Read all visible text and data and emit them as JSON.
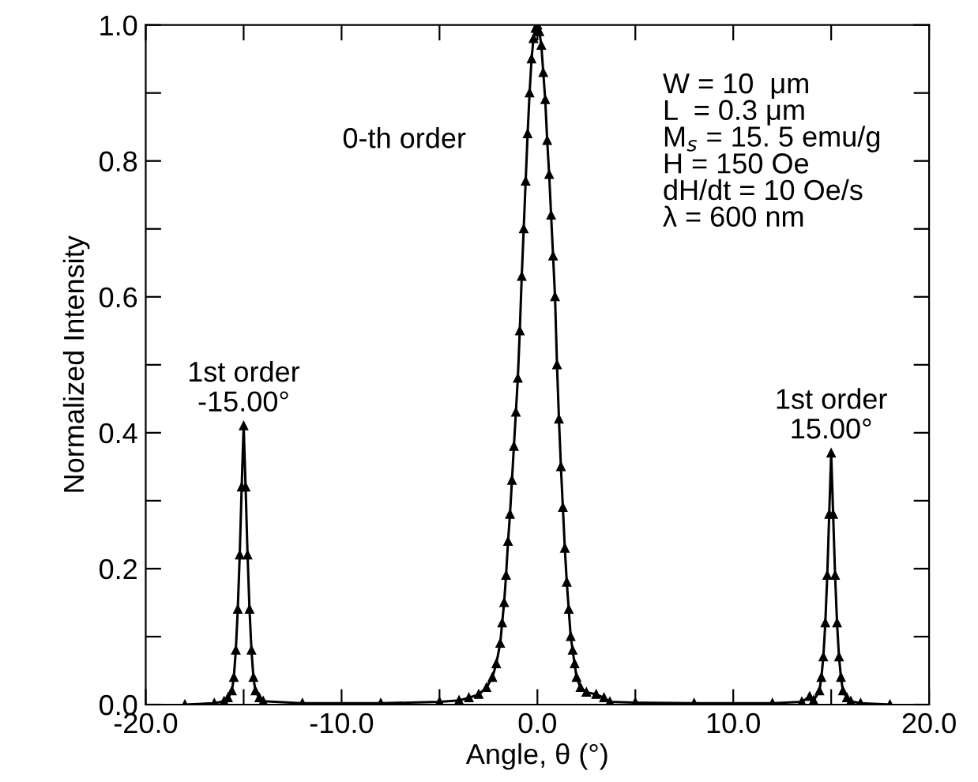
{
  "chart_data": {
    "type": "line",
    "xlabel": "Angle, θ (°)",
    "ylabel": "Normalized Intensity",
    "xlim": [
      -20,
      20
    ],
    "ylim": [
      0,
      1.0
    ],
    "xticks": [
      {
        "value": -20,
        "label": "-20.0"
      },
      {
        "value": -15,
        "label": null
      },
      {
        "value": -10,
        "label": "-10.0"
      },
      {
        "value": -5,
        "label": null
      },
      {
        "value": 0,
        "label": "0.0"
      },
      {
        "value": 5,
        "label": null
      },
      {
        "value": 10,
        "label": "10.0"
      },
      {
        "value": 15,
        "label": null
      },
      {
        "value": 20,
        "label": "20.0"
      }
    ],
    "yticks": [
      {
        "value": 0,
        "label": "0.0"
      },
      {
        "value": 0.1,
        "label": null
      },
      {
        "value": 0.2,
        "label": "0.2"
      },
      {
        "value": 0.3,
        "label": null
      },
      {
        "value": 0.4,
        "label": "0.4"
      },
      {
        "value": 0.5,
        "label": null
      },
      {
        "value": 0.6,
        "label": "0.6"
      },
      {
        "value": 0.7,
        "label": null
      },
      {
        "value": 0.8,
        "label": "0.8"
      },
      {
        "value": 0.9,
        "label": null
      },
      {
        "value": 1.0,
        "label": "1.0"
      }
    ],
    "marker": "triangle",
    "line_style": "solid",
    "grid": false,
    "legend": false,
    "series": [
      {
        "color": "#000000",
        "x": [
          -18,
          -16.5,
          -16,
          -15.8,
          -15.6,
          -15.5,
          -15.4,
          -15.3,
          -15.2,
          -15.1,
          -15.0,
          -14.9,
          -14.8,
          -14.7,
          -14.6,
          -14.5,
          -14.4,
          -14.2,
          -14,
          -12,
          -8,
          -5,
          -4,
          -3.5,
          -3,
          -2.6,
          -2.3,
          -2.1,
          -1.9,
          -1.8,
          -1.7,
          -1.6,
          -1.5,
          -1.4,
          -1.3,
          -1.2,
          -1.1,
          -1.0,
          -0.9,
          -0.8,
          -0.7,
          -0.6,
          -0.5,
          -0.4,
          -0.3,
          -0.2,
          -0.1,
          0,
          0.1,
          0.2,
          0.3,
          0.4,
          0.5,
          0.6,
          0.7,
          0.8,
          0.9,
          1.0,
          1.1,
          1.2,
          1.3,
          1.4,
          1.5,
          1.6,
          1.7,
          1.8,
          1.9,
          2.0,
          2.2,
          2.5,
          3.0,
          3.4,
          3.7,
          5,
          8,
          12,
          13.5,
          13.9,
          14.1,
          14.4,
          14.5,
          14.6,
          14.7,
          14.8,
          14.9,
          15.0,
          15.1,
          15.2,
          15.3,
          15.4,
          15.5,
          15.6,
          15.8,
          16,
          16.5,
          18
        ],
        "values": [
          0.0,
          0.002,
          0.005,
          0.01,
          0.02,
          0.04,
          0.08,
          0.14,
          0.22,
          0.32,
          0.41,
          0.32,
          0.22,
          0.14,
          0.08,
          0.04,
          0.02,
          0.01,
          0.005,
          0.002,
          0.002,
          0.004,
          0.006,
          0.01,
          0.015,
          0.025,
          0.04,
          0.06,
          0.09,
          0.12,
          0.15,
          0.19,
          0.24,
          0.28,
          0.33,
          0.38,
          0.43,
          0.48,
          0.55,
          0.63,
          0.7,
          0.77,
          0.84,
          0.9,
          0.95,
          0.98,
          0.995,
          1.0,
          0.99,
          0.97,
          0.93,
          0.89,
          0.83,
          0.78,
          0.72,
          0.66,
          0.6,
          0.5,
          0.42,
          0.35,
          0.29,
          0.23,
          0.18,
          0.14,
          0.1,
          0.08,
          0.06,
          0.04,
          0.025,
          0.018,
          0.015,
          0.01,
          0.004,
          0.003,
          0.002,
          0.002,
          0.004,
          0.012,
          0.006,
          0.02,
          0.04,
          0.07,
          0.12,
          0.19,
          0.28,
          0.37,
          0.28,
          0.19,
          0.12,
          0.07,
          0.04,
          0.02,
          0.01,
          0.005,
          0.002,
          0.0
        ]
      }
    ],
    "annotations": [
      "0-th order",
      "W = 10  μm\nL  = 0.3 μm\nM$_{s}$ = 15. 5 emu/g\nH = 150 Oe\ndH/dt = 10 Oe/s\nλ = 600 nm",
      {
        "text": "1st order\n-15.00°",
        "x": -15,
        "y": 0.41
      },
      {
        "text": "1st order\n15.00°",
        "x": 15,
        "y": 0.37
      }
    ]
  }
}
